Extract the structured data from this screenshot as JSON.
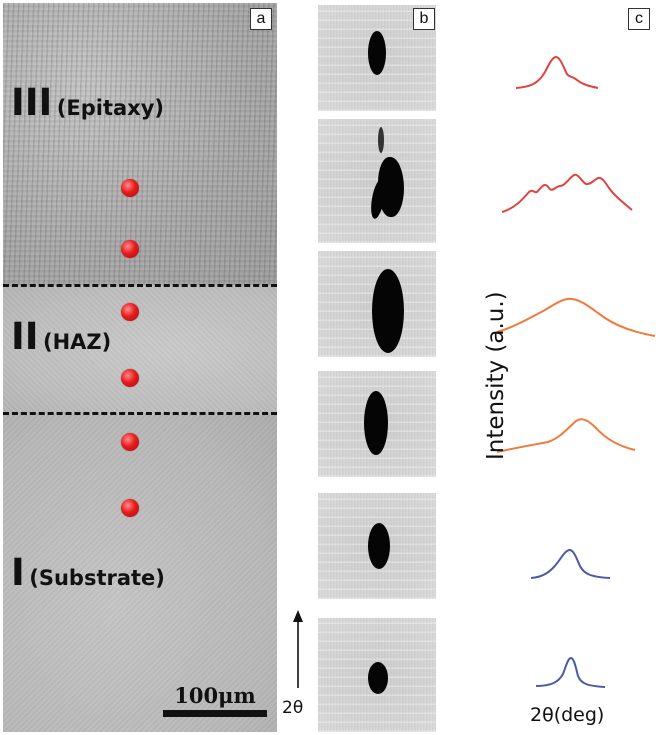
{
  "panel_a": {
    "tag": "a",
    "regions": [
      {
        "roman": "III",
        "name": "(Epitaxy)"
      },
      {
        "roman": "II",
        "name": "(HAZ)"
      },
      {
        "roman": "I",
        "name": "(Substrate)"
      }
    ],
    "scale_bar_label": "100μm",
    "marker_color": "#e41d1d",
    "measurement_points": 6
  },
  "panel_b": {
    "tag": "b",
    "axis_label": "2θ",
    "frame_count": 6
  },
  "panel_c": {
    "tag": "c",
    "ylabel": "Intensity (a.u.)",
    "xlabel": "2θ(deg)",
    "curve_colors": {
      "epitaxy": "#e0443f",
      "haz": "#ee7a3c",
      "substrate": "#4a5aa8"
    }
  }
}
